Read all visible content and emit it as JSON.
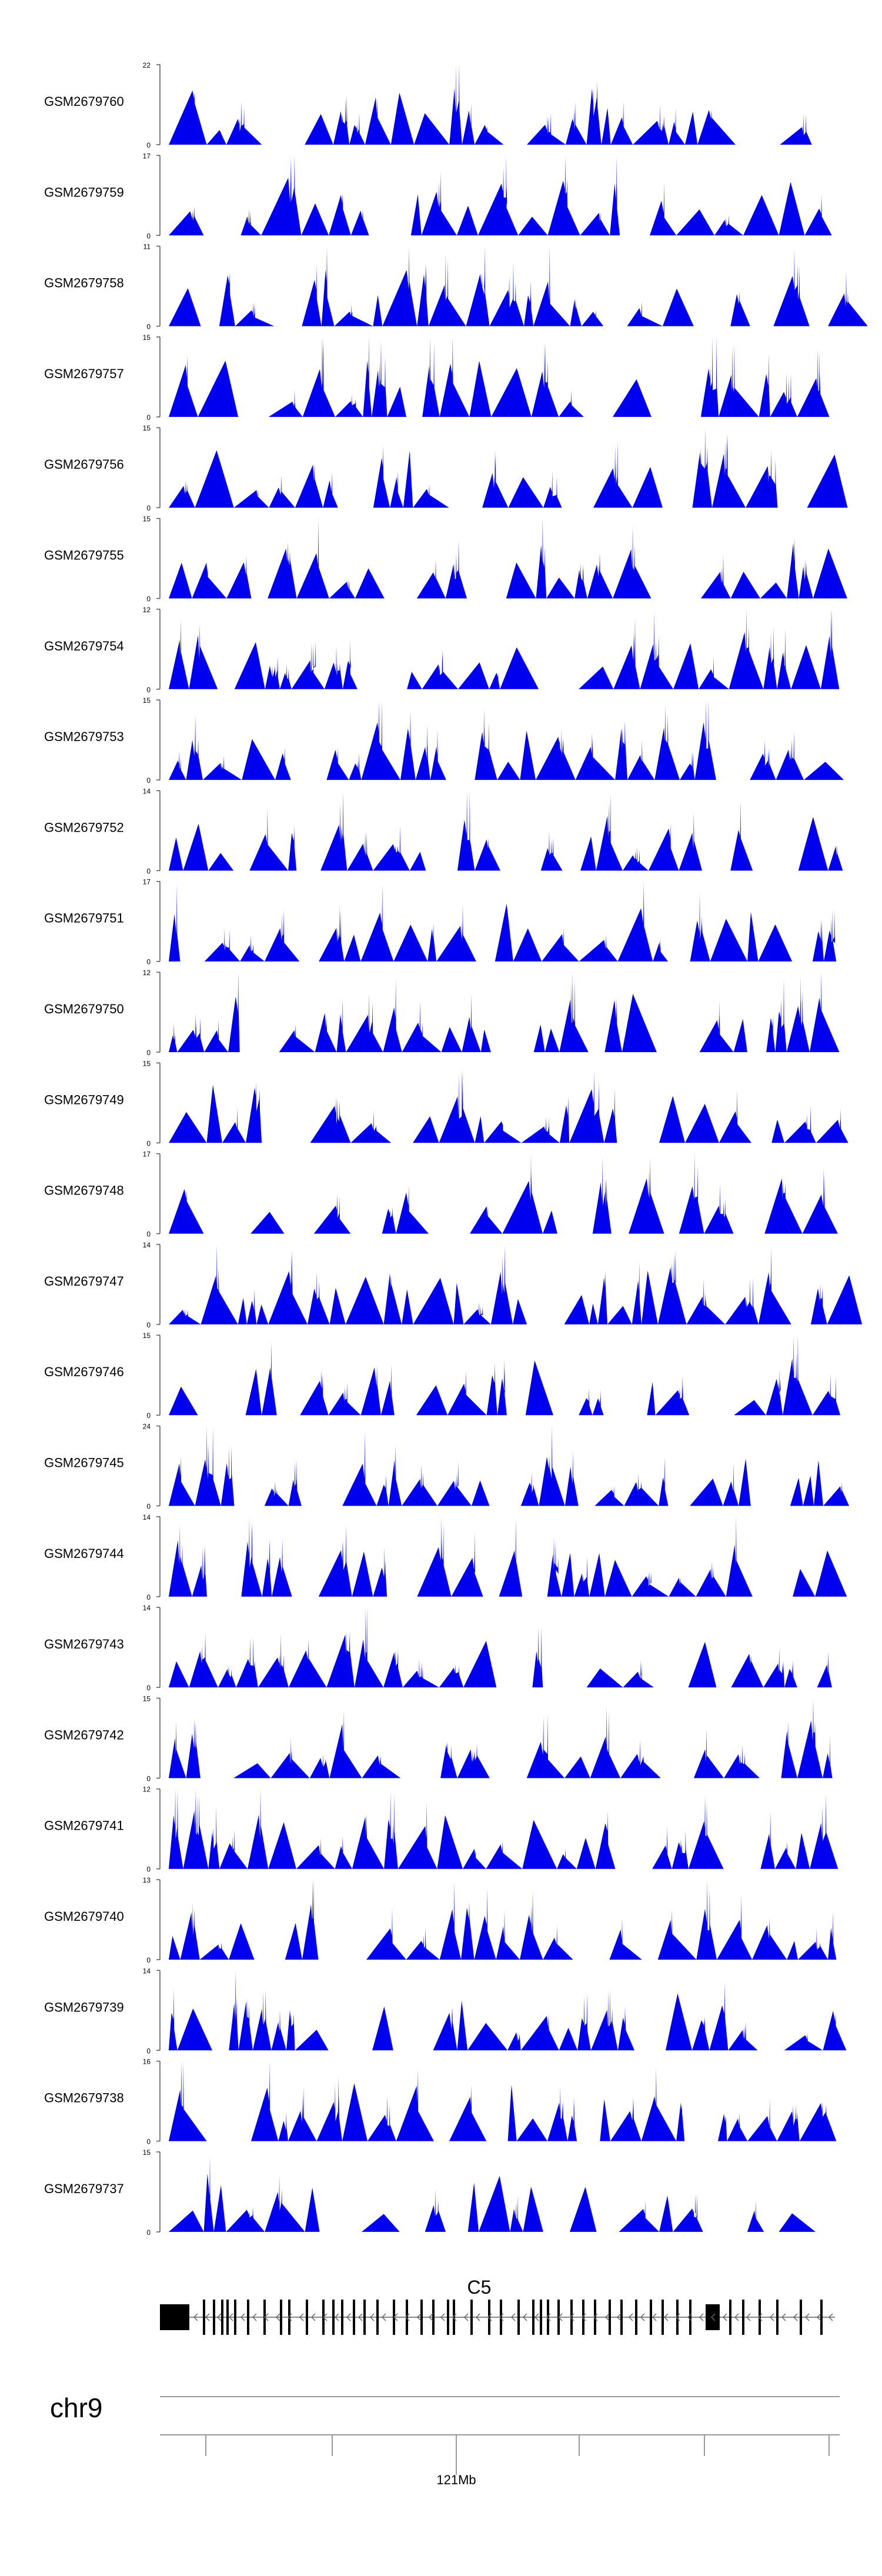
{
  "chart_data": {
    "type": "area",
    "title": "",
    "xlabel": "",
    "ylabel": "",
    "chromosome": "chr9",
    "gene": "C5",
    "x_axis": {
      "tick_labels": [
        {
          "label": "121Mb",
          "position": 0.43
        }
      ]
    },
    "series": [
      {
        "name": "GSM2679760",
        "ymax_label": "22",
        "ymin_label": "0",
        "ylim": [
          0,
          22
        ],
        "seed": 1760
      },
      {
        "name": "GSM2679759",
        "ymax_label": "17",
        "ymin_label": "0",
        "ylim": [
          0,
          17
        ],
        "seed": 1759
      },
      {
        "name": "GSM2679758",
        "ymax_label": "11",
        "ymin_label": "0",
        "ylim": [
          0,
          11
        ],
        "seed": 1758
      },
      {
        "name": "GSM2679757",
        "ymax_label": "15",
        "ymin_label": "0",
        "ylim": [
          0,
          15
        ],
        "seed": 1757
      },
      {
        "name": "GSM2679756",
        "ymax_label": "15",
        "ymin_label": "0",
        "ylim": [
          0,
          15
        ],
        "seed": 1756
      },
      {
        "name": "GSM2679755",
        "ymax_label": "15",
        "ymin_label": "0",
        "ylim": [
          0,
          15
        ],
        "seed": 1755
      },
      {
        "name": "GSM2679754",
        "ymax_label": "12",
        "ymin_label": "0",
        "ylim": [
          0,
          12
        ],
        "seed": 1754
      },
      {
        "name": "GSM2679753",
        "ymax_label": "15",
        "ymin_label": "0",
        "ylim": [
          0,
          15
        ],
        "seed": 1753
      },
      {
        "name": "GSM2679752",
        "ymax_label": "14",
        "ymin_label": "0",
        "ylim": [
          0,
          14
        ],
        "seed": 1752
      },
      {
        "name": "GSM2679751",
        "ymax_label": "17",
        "ymin_label": "0",
        "ylim": [
          0,
          17
        ],
        "seed": 1751
      },
      {
        "name": "GSM2679750",
        "ymax_label": "12",
        "ymin_label": "0",
        "ylim": [
          0,
          12
        ],
        "seed": 1750
      },
      {
        "name": "GSM2679749",
        "ymax_label": "15",
        "ymin_label": "0",
        "ylim": [
          0,
          15
        ],
        "seed": 1749
      },
      {
        "name": "GSM2679748",
        "ymax_label": "17",
        "ymin_label": "0",
        "ylim": [
          0,
          17
        ],
        "seed": 1748
      },
      {
        "name": "GSM2679747",
        "ymax_label": "14",
        "ymin_label": "0",
        "ylim": [
          0,
          14
        ],
        "seed": 1747
      },
      {
        "name": "GSM2679746",
        "ymax_label": "15",
        "ymin_label": "0",
        "ylim": [
          0,
          15
        ],
        "seed": 1746
      },
      {
        "name": "GSM2679745",
        "ymax_label": "24",
        "ymin_label": "0",
        "ylim": [
          0,
          24
        ],
        "seed": 1745
      },
      {
        "name": "GSM2679744",
        "ymax_label": "14",
        "ymin_label": "0",
        "ylim": [
          0,
          14
        ],
        "seed": 1744
      },
      {
        "name": "GSM2679743",
        "ymax_label": "14",
        "ymin_label": "0",
        "ylim": [
          0,
          14
        ],
        "seed": 1743
      },
      {
        "name": "GSM2679742",
        "ymax_label": "15",
        "ymin_label": "0",
        "ylim": [
          0,
          15
        ],
        "seed": 1742
      },
      {
        "name": "GSM2679741",
        "ymax_label": "12",
        "ymin_label": "0",
        "ylim": [
          0,
          12
        ],
        "seed": 1741
      },
      {
        "name": "GSM2679740",
        "ymax_label": "13",
        "ymin_label": "0",
        "ylim": [
          0,
          13
        ],
        "seed": 1740
      },
      {
        "name": "GSM2679739",
        "ymax_label": "14",
        "ymin_label": "0",
        "ylim": [
          0,
          14
        ],
        "seed": 1739
      },
      {
        "name": "GSM2679738",
        "ymax_label": "16",
        "ymin_label": "0",
        "ylim": [
          0,
          16
        ],
        "seed": 1738
      },
      {
        "name": "GSM2679737",
        "ymax_label": "15",
        "ymin_label": "0",
        "ylim": [
          0,
          15
        ],
        "seed": 1737
      }
    ]
  },
  "colors": {
    "coverage_fill": "#0000ee",
    "axis": "#555555",
    "text": "#000000",
    "gene_feature": "#000000",
    "ideogram_line": "#999999"
  }
}
